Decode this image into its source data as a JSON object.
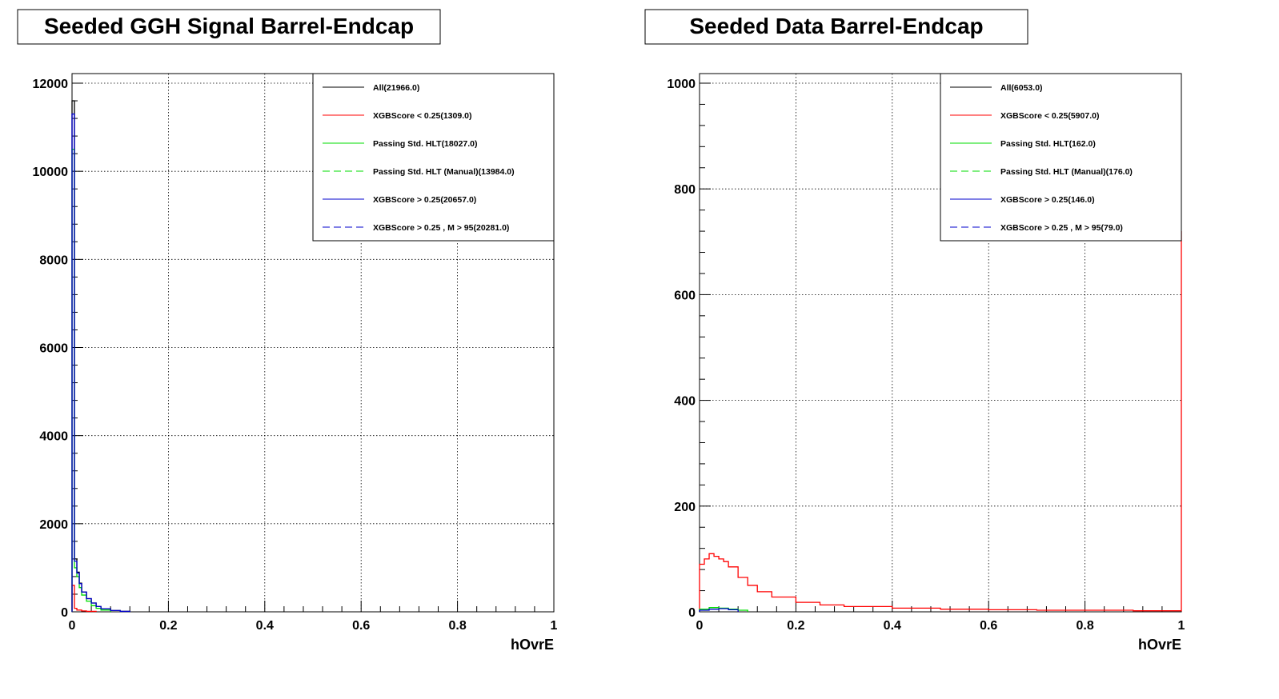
{
  "chart_data": [
    {
      "type": "line",
      "title": "Seeded GGH Signal Barrel-Endcap",
      "xlabel": "hOvrE",
      "ylabel": "",
      "xlim": [
        0,
        1
      ],
      "ylim": [
        0,
        12000
      ],
      "x_ticks": [
        "0",
        "0.2",
        "0.4",
        "0.6",
        "0.8",
        "1"
      ],
      "y_ticks": [
        "0",
        "2000",
        "4000",
        "6000",
        "8000",
        "10000",
        "12000"
      ],
      "grid": true,
      "legend_position": "top-right",
      "legend": [
        {
          "label": "All(21966.0)",
          "color": "#000000",
          "dashed": false
        },
        {
          "label": "XGBScore < 0.25(1309.0)",
          "color": "#ff0000",
          "dashed": false
        },
        {
          "label": "Passing Std. HLT(18027.0)",
          "color": "#00dd00",
          "dashed": false
        },
        {
          "label": "Passing Std. HLT (Manual)(13984.0)",
          "color": "#00dd00",
          "dashed": true
        },
        {
          "label": "XGBScore > 0.25(20657.0)",
          "color": "#0000cc",
          "dashed": false
        },
        {
          "label": "XGBScore > 0.25 , M > 95(20281.0)",
          "color": "#0000cc",
          "dashed": true
        }
      ],
      "series": [
        {
          "color": "#000000",
          "x": [
            0,
            0.005,
            0.01,
            0.015,
            0.02,
            0.03,
            0.04,
            0.05,
            0.06,
            0.08,
            0.1,
            0.12
          ],
          "y": [
            11600,
            1200,
            900,
            650,
            450,
            300,
            200,
            120,
            70,
            30,
            10,
            0
          ]
        },
        {
          "color": "#ff0000",
          "x": [
            0,
            0.005,
            0.01,
            0.02,
            0.03,
            0.05
          ],
          "y": [
            600,
            80,
            40,
            20,
            10,
            0
          ]
        },
        {
          "color": "#00dd00",
          "x": [
            0,
            0.005,
            0.01,
            0.015,
            0.02,
            0.03,
            0.04,
            0.05,
            0.06,
            0.08
          ],
          "y": [
            10500,
            1000,
            800,
            550,
            380,
            240,
            140,
            80,
            40,
            0
          ]
        },
        {
          "color": "#0000cc",
          "x": [
            0,
            0.005,
            0.01,
            0.015,
            0.02,
            0.03,
            0.04,
            0.05,
            0.06,
            0.08,
            0.1,
            0.12
          ],
          "y": [
            11300,
            1150,
            880,
            640,
            450,
            300,
            200,
            120,
            70,
            30,
            10,
            0
          ]
        }
      ]
    },
    {
      "type": "line",
      "title": "Seeded Data Barrel-Endcap",
      "xlabel": "hOvrE",
      "ylabel": "",
      "xlim": [
        0,
        1
      ],
      "ylim": [
        0,
        1000
      ],
      "x_ticks": [
        "0",
        "0.2",
        "0.4",
        "0.6",
        "0.8",
        "1"
      ],
      "y_ticks": [
        "0",
        "200",
        "400",
        "600",
        "800",
        "1000"
      ],
      "grid": true,
      "legend_position": "top-right",
      "legend": [
        {
          "label": "All(6053.0)",
          "color": "#000000",
          "dashed": false
        },
        {
          "label": "XGBScore < 0.25(5907.0)",
          "color": "#ff0000",
          "dashed": false
        },
        {
          "label": "Passing Std. HLT(162.0)",
          "color": "#00dd00",
          "dashed": false
        },
        {
          "label": "Passing Std. HLT (Manual)(176.0)",
          "color": "#00dd00",
          "dashed": true
        },
        {
          "label": "XGBScore > 0.25(146.0)",
          "color": "#0000cc",
          "dashed": false
        },
        {
          "label": "XGBScore > 0.25 , M > 95(79.0)",
          "color": "#0000cc",
          "dashed": true
        }
      ],
      "series": [
        {
          "color": "#ff0000",
          "x": [
            0,
            0.01,
            0.02,
            0.03,
            0.04,
            0.05,
            0.06,
            0.08,
            0.1,
            0.12,
            0.15,
            0.2,
            0.25,
            0.3,
            0.4,
            0.5,
            0.6,
            0.7,
            0.8,
            0.9,
            0.99,
            1.0
          ],
          "y": [
            90,
            100,
            110,
            105,
            100,
            95,
            85,
            65,
            50,
            38,
            28,
            18,
            13,
            10,
            7,
            5,
            4,
            3,
            3,
            2,
            2,
            720
          ]
        },
        {
          "color": "#00dd00",
          "x": [
            0,
            0.02,
            0.04,
            0.06,
            0.08,
            0.1
          ],
          "y": [
            5,
            8,
            7,
            5,
            3,
            0
          ]
        },
        {
          "color": "#0000cc",
          "x": [
            0,
            0.02,
            0.04,
            0.06,
            0.08
          ],
          "y": [
            3,
            5,
            6,
            4,
            0
          ]
        }
      ]
    }
  ]
}
